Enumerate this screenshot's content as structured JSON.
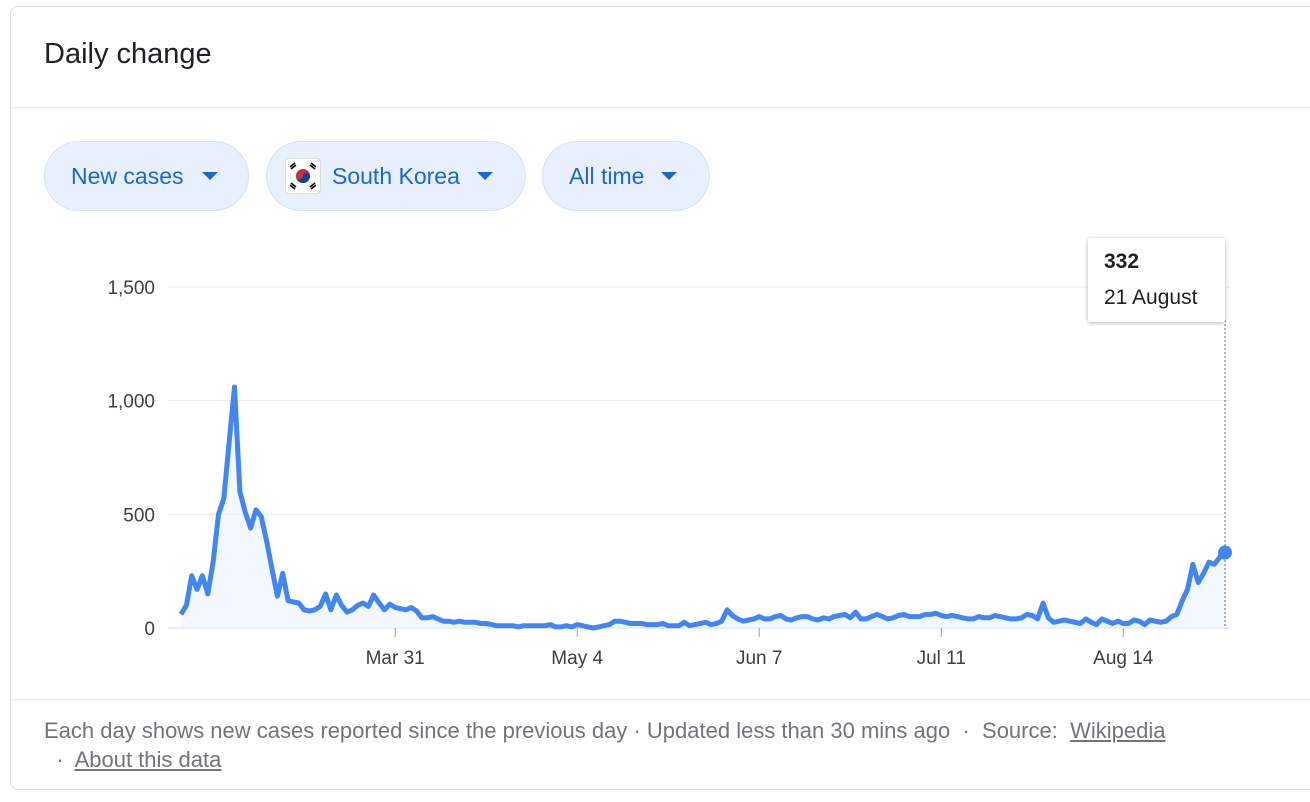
{
  "header": {
    "title": "Daily change"
  },
  "controls": {
    "metric": {
      "label": "New cases"
    },
    "region": {
      "label": "South Korea",
      "flag_icon": "south-korea-flag-icon"
    },
    "range": {
      "label": "All time"
    }
  },
  "tooltip": {
    "value": "332",
    "date": "21 August"
  },
  "chart_data": {
    "type": "area",
    "title": "Daily change",
    "ylabel": "",
    "xlabel": "",
    "ylim": [
      0,
      1500
    ],
    "yticks": [
      0,
      500,
      1000,
      1500
    ],
    "ytick_labels": [
      "0",
      "500",
      "1,000",
      "1,500"
    ],
    "xticks": [
      "Mar 31",
      "May 4",
      "Jun 7",
      "Jul 11",
      "Aug 14"
    ],
    "xtick_dates": [
      "2020-03-31",
      "2020-05-04",
      "2020-06-07",
      "2020-07-11",
      "2020-08-14"
    ],
    "grid": true,
    "line_color": "#4285f4",
    "fill_color": "#e8f0fe",
    "series": [
      {
        "start_date": "2020-02-20",
        "values": [
          60,
          100,
          230,
          170,
          230,
          150,
          290,
          500,
          570,
          820,
          1060,
          600,
          510,
          440,
          520,
          490,
          380,
          260,
          140,
          240,
          120,
          115,
          110,
          80,
          75,
          80,
          95,
          150,
          80,
          145,
          100,
          70,
          80,
          100,
          110,
          95,
          145,
          110,
          80,
          105,
          90,
          85,
          80,
          90,
          75,
          45,
          45,
          50,
          40,
          30,
          30,
          25,
          30,
          25,
          25,
          25,
          20,
          20,
          15,
          10,
          10,
          10,
          10,
          5,
          10,
          10,
          10,
          10,
          10,
          15,
          5,
          5,
          10,
          5,
          15,
          10,
          5,
          0,
          5,
          10,
          15,
          30,
          30,
          25,
          20,
          20,
          20,
          15,
          15,
          15,
          20,
          10,
          10,
          10,
          25,
          10,
          15,
          20,
          25,
          15,
          20,
          30,
          80,
          55,
          40,
          30,
          35,
          40,
          50,
          40,
          40,
          50,
          55,
          40,
          35,
          45,
          50,
          50,
          40,
          35,
          45,
          40,
          50,
          55,
          60,
          45,
          70,
          40,
          40,
          50,
          60,
          50,
          40,
          45,
          55,
          60,
          50,
          50,
          50,
          60,
          60,
          65,
          55,
          50,
          55,
          50,
          45,
          40,
          40,
          50,
          45,
          45,
          55,
          50,
          45,
          40,
          40,
          45,
          60,
          55,
          40,
          110,
          45,
          25,
          30,
          35,
          30,
          25,
          20,
          40,
          25,
          15,
          40,
          30,
          20,
          30,
          20,
          20,
          35,
          30,
          15,
          35,
          30,
          25,
          30,
          50,
          60,
          120,
          170,
          280,
          200,
          240,
          290,
          280,
          310,
          332
        ]
      }
    ]
  },
  "footer": {
    "description": "Each day shows new cases reported since the previous day",
    "updated": "Updated less than 30 mins ago",
    "source_label": "Source:",
    "source_link": "Wikipedia",
    "about_link": "About this data",
    "separator": "·"
  }
}
